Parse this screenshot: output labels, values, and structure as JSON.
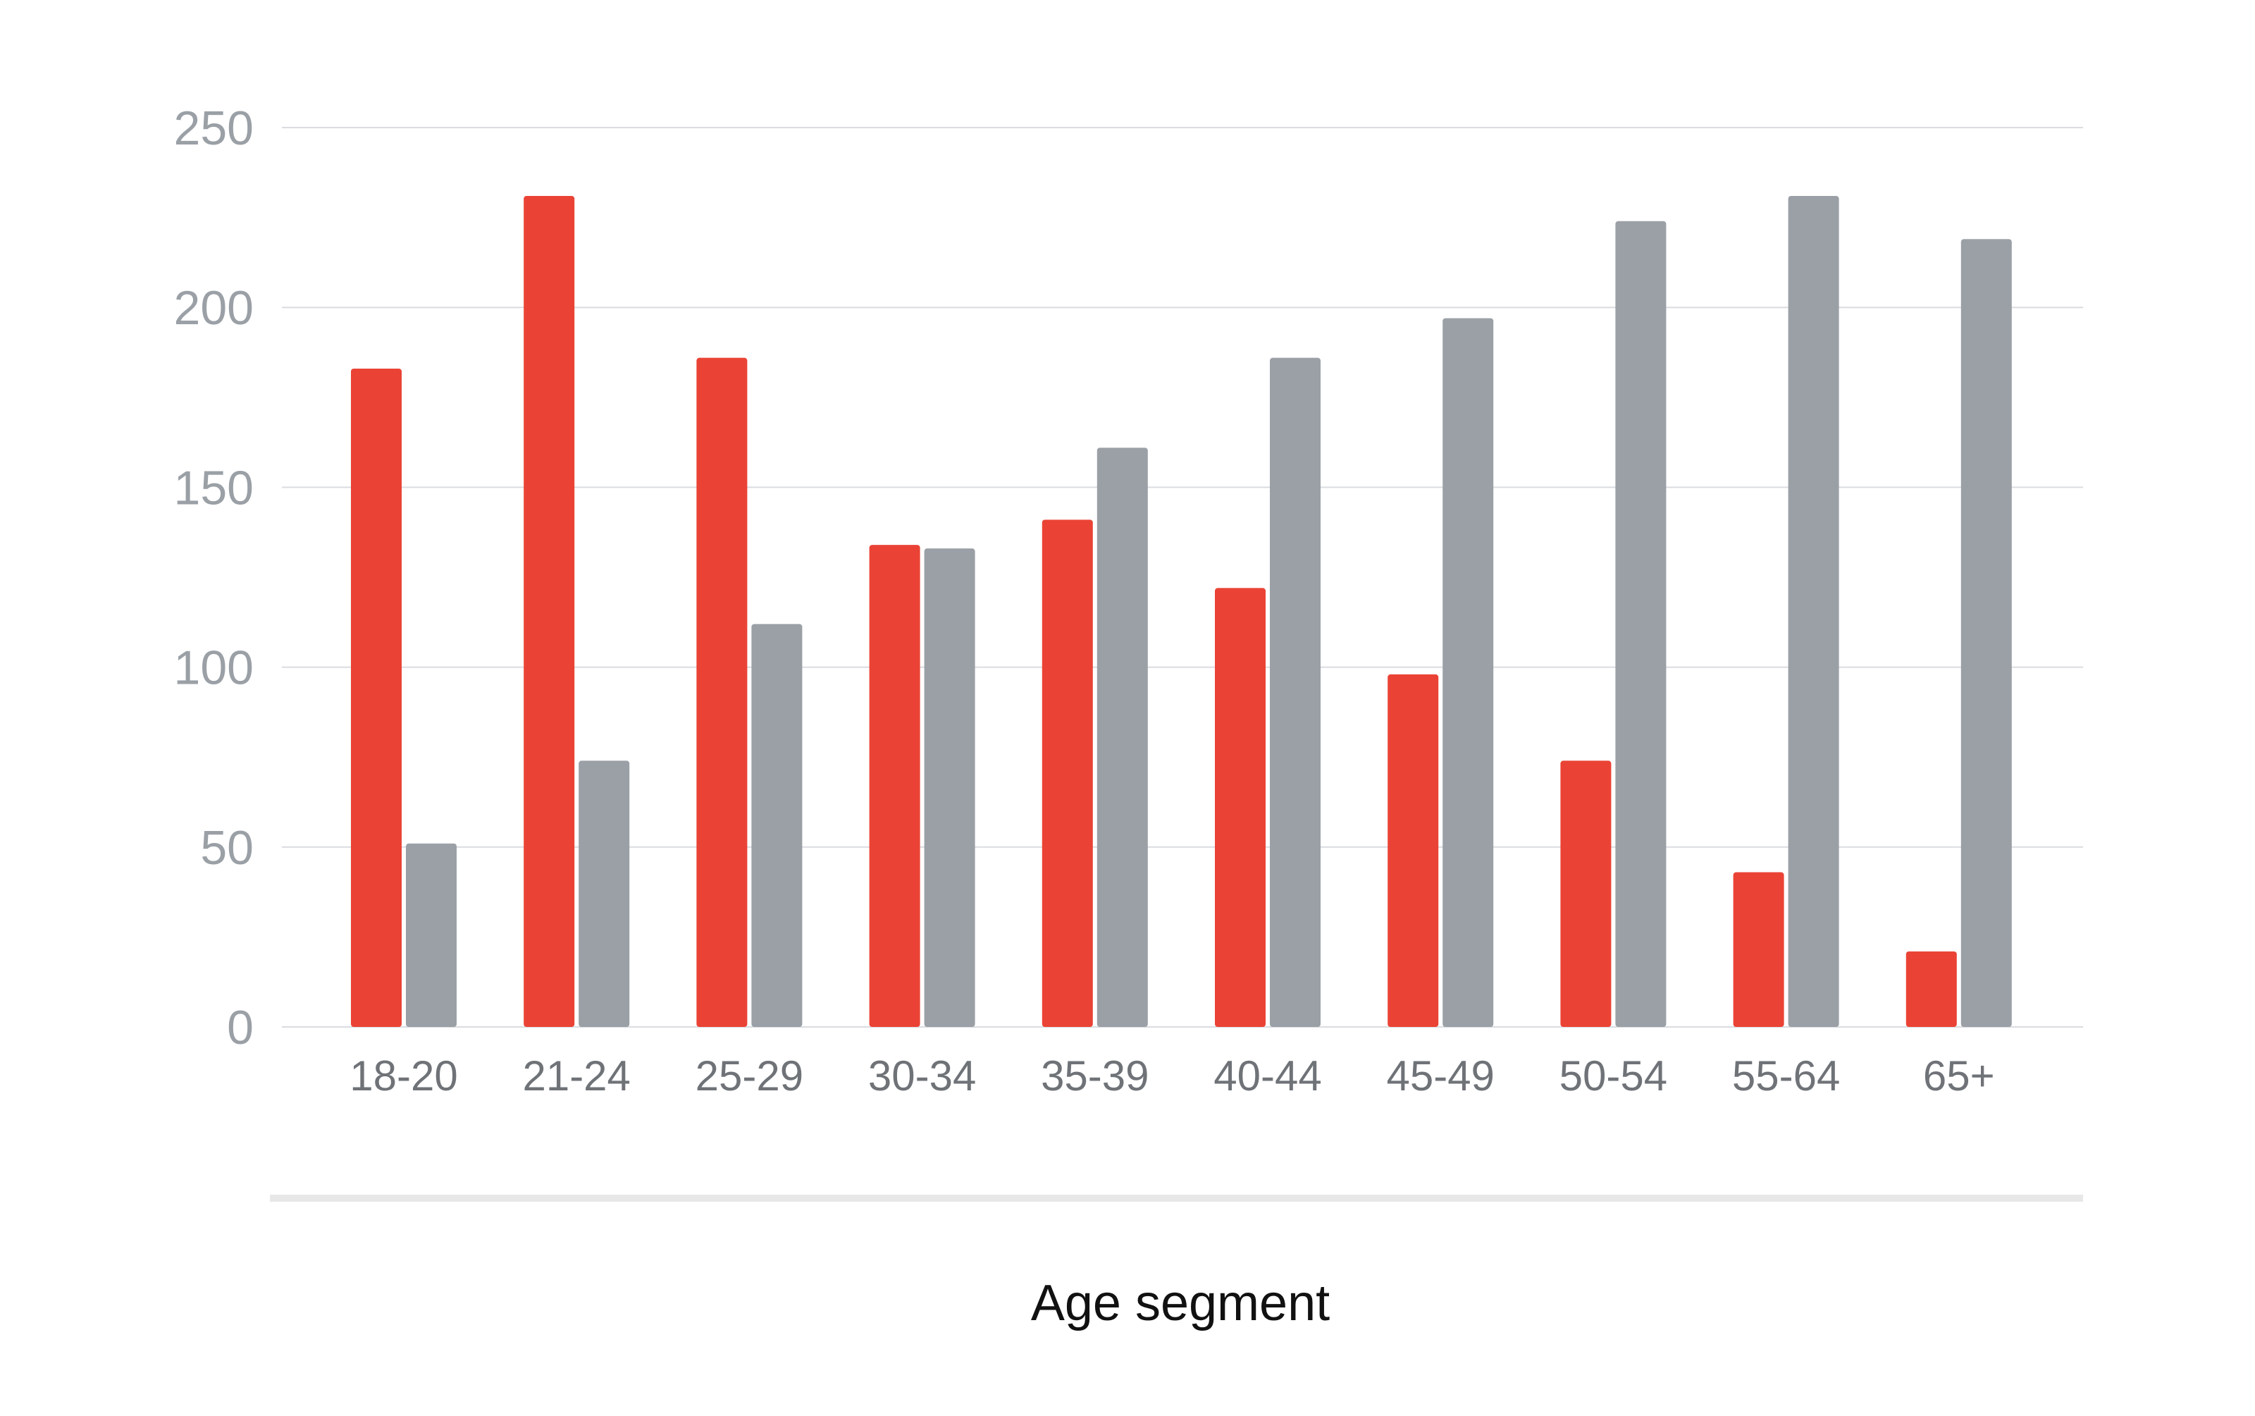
{
  "chart_data": {
    "type": "bar",
    "xlabel": "Age segment",
    "ylabel": "",
    "ylim": [
      0,
      250
    ],
    "yticks": [
      0,
      50,
      100,
      150,
      200,
      250
    ],
    "grid": true,
    "categories": [
      "18-20",
      "21-24",
      "25-29",
      "30-34",
      "35-39",
      "40-44",
      "45-49",
      "50-54",
      "55-64",
      "65+"
    ],
    "series": [
      {
        "color": "#ea4335",
        "values": [
          183,
          231,
          186,
          134,
          141,
          122,
          98,
          74,
          43,
          21
        ]
      },
      {
        "color": "#9aa0a6",
        "values": [
          51,
          74,
          112,
          133,
          161,
          186,
          197,
          224,
          231,
          219
        ]
      }
    ]
  }
}
